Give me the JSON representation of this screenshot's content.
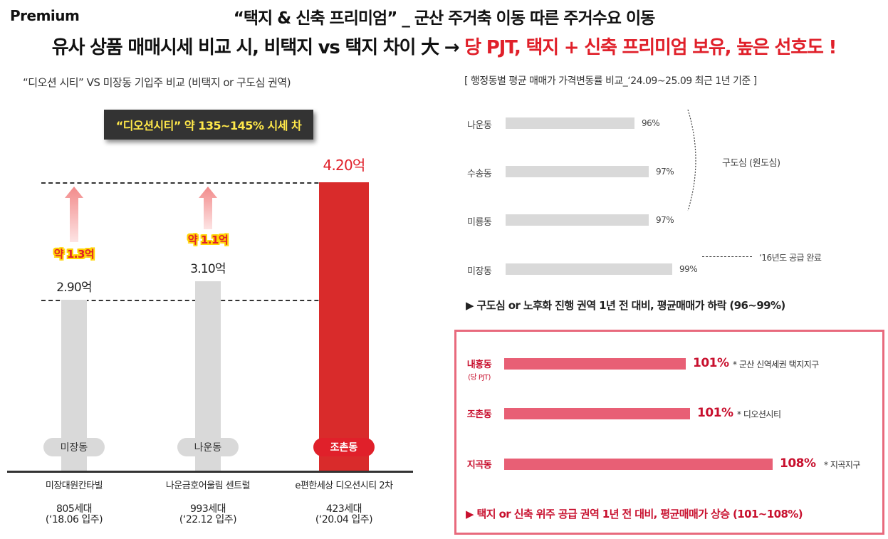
{
  "header": {
    "premium": "Premium",
    "title1": "“택지 & 신축 프리미엄” _ 군산 주거축 이동 따른 주거수요 이동",
    "title2_black": "유사 상품 매매시세 비교 시, 비택지 vs 택지 차이 大 →",
    "title2_red": "당 PJT, 택지 + 신축 프리미엄 보유, 높은 선호도 !"
  },
  "left": {
    "subtitle": "“디오션 시티” VS 미장동 기입주 비교 (비택지 or 구도심 권역)",
    "premium_box": "“디오션시티” 약 135~145% 시세 차"
  },
  "chart_data": [
    {
      "type": "bar",
      "categories": [
        "미장동",
        "나운동",
        "조촌동"
      ],
      "values": [
        2.9,
        3.1,
        4.2
      ],
      "value_labels": [
        "2.90억",
        "3.10억",
        "4.20억"
      ],
      "diff_labels": [
        "약 1.3억",
        "약 1.1억",
        ""
      ],
      "complexes": [
        "미장대원칸타빌",
        "나운금호어울림 센트럴",
        "e편한세상 디오션시티 2차"
      ],
      "households": [
        [
          "805세대",
          "(‘18.06 입주)"
        ],
        [
          "993세대",
          "(‘22.12 입주)"
        ],
        [
          "423세대",
          "(‘20.04 입주)"
        ]
      ],
      "highlight_colors": [
        "#d9d9d9",
        "#d9d9d9",
        "#d92b2b"
      ],
      "ylim": [
        0,
        4.6
      ]
    },
    {
      "type": "bar",
      "title": "[ 행정동별 평균 매매가 가격변동률 비교_‘24.09~25.09 최근 1년 기준 ]",
      "categories": [
        "나운동",
        "수송동",
        "미룡동",
        "미장동",
        "내흥동",
        "조촌동",
        "지곡동"
      ],
      "category_sublabels": [
        "",
        "",
        "",
        "",
        "(당 PJT)",
        "",
        ""
      ],
      "values": [
        96,
        97,
        97,
        99,
        101,
        101,
        108
      ],
      "value_labels": [
        "96%",
        "97%",
        "97%",
        "99%",
        "101%",
        "101%",
        "108%"
      ],
      "annotations": {
        "group_old": "구도심 (원도심)",
        "supply_done": "‘16년도 공급 완료",
        "notes": [
          "* 군산 신역세권 택지지구",
          "* 디오션시티",
          "* 지곡지구"
        ],
        "summary_old": "▶ 구도심 or 노후화 진행 권역 1년 전 대비, 평균매매가 하락 (96~99%)",
        "summary_new": "▶ 택지 or 신축 위주 공급 권역 1년 전 대비, 평균매매가 상승 (101~108%)"
      },
      "colors": {
        "old": "#d9d9d9",
        "new": "#e85f75",
        "new_text": "#c8102e"
      }
    }
  ]
}
